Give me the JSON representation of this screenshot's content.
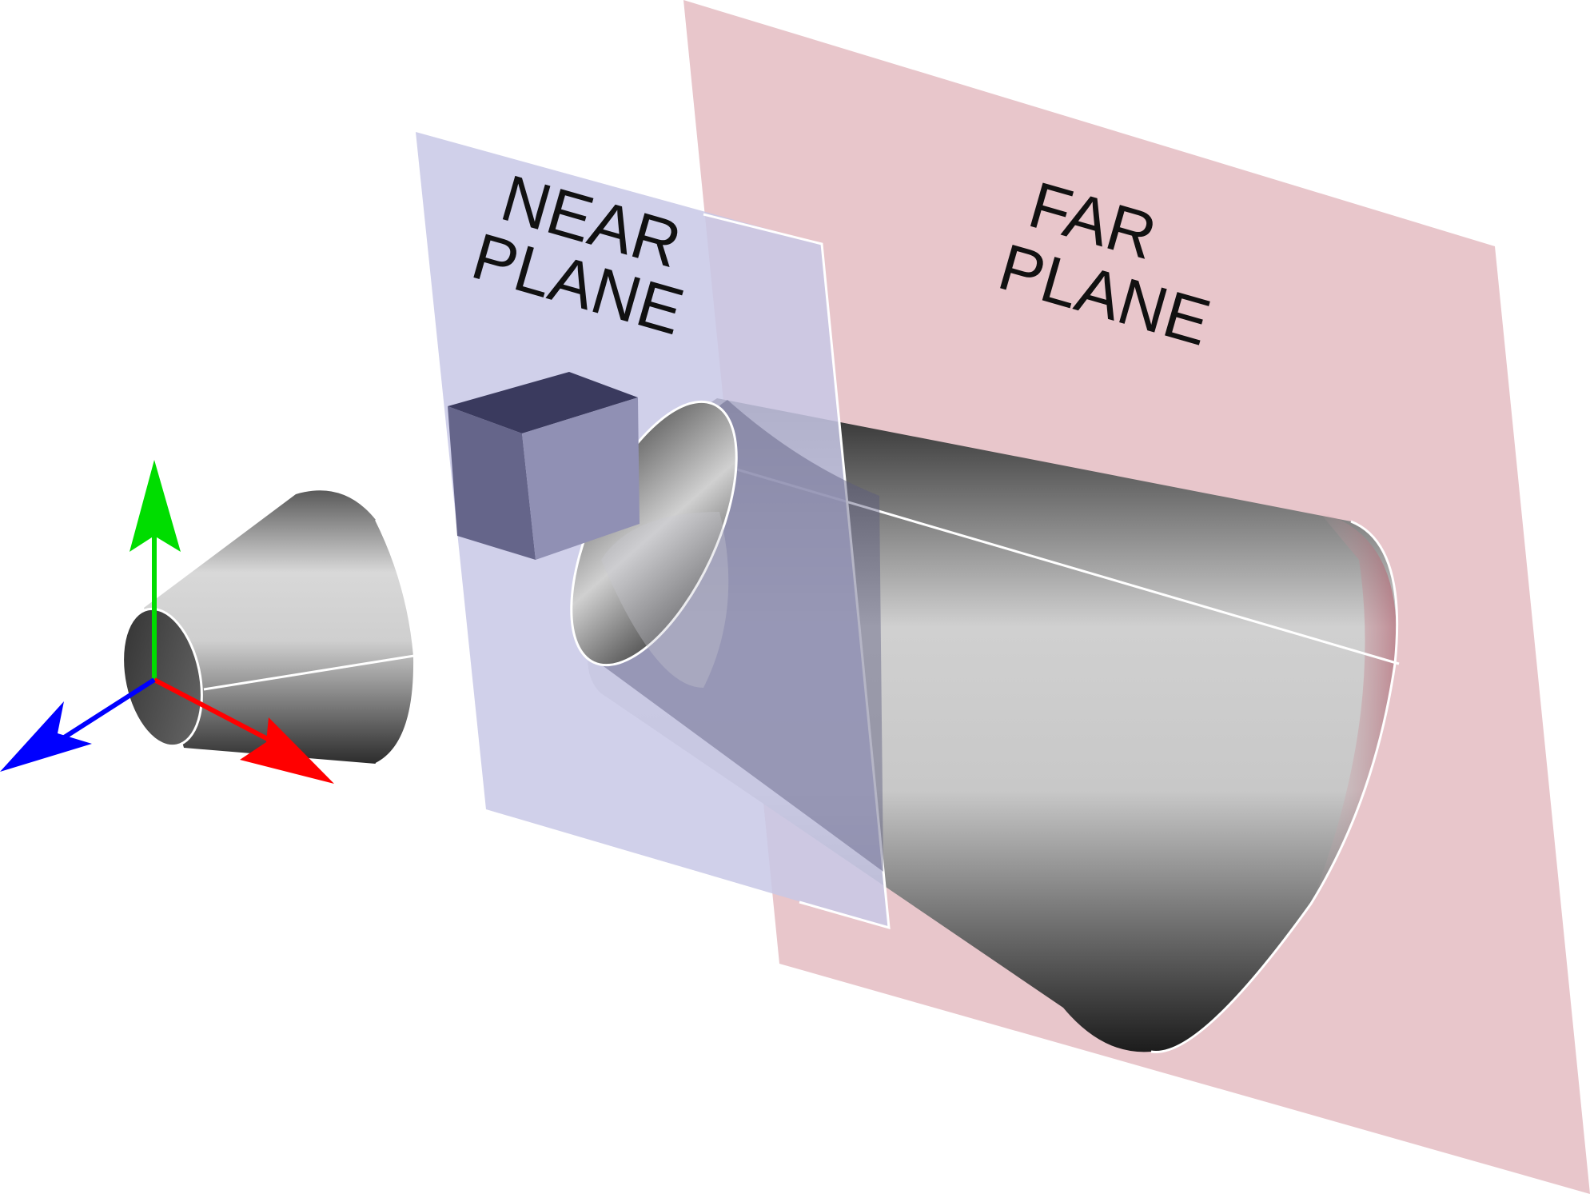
{
  "near_plane": {
    "label_line1": "NEAR",
    "label_line2": "PLANE",
    "color": "#c8c8e6"
  },
  "far_plane": {
    "label_line1": "FAR",
    "label_line2": "PLANE",
    "color": "#e8c6cb"
  },
  "axes": {
    "x_color": "#ff0000",
    "y_color": "#00dd00",
    "z_color": "#0000ff"
  }
}
